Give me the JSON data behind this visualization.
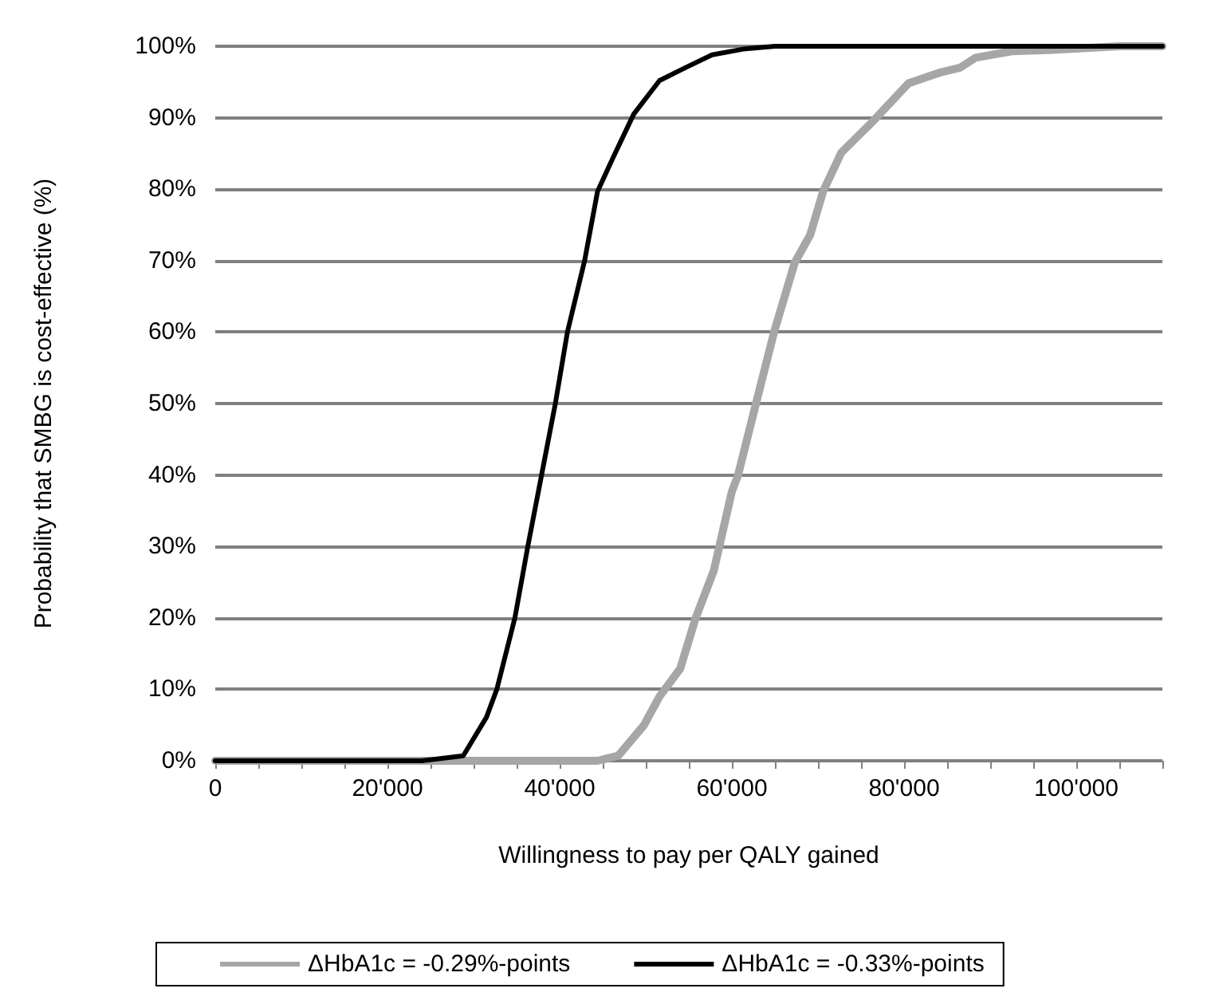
{
  "chart_data": {
    "type": "line",
    "xlabel": "Willingness to pay per QALY gained",
    "ylabel": "Probability that SMBG is cost-effective (%)",
    "xlim": [
      0,
      110000
    ],
    "ylim": [
      0,
      100
    ],
    "xticks": [
      0,
      {
        "value": 5000,
        "label": null
      },
      {
        "value": 10000,
        "label": null
      },
      {
        "value": 15000,
        "label": null
      },
      {
        "value": 20000,
        "label": "20'000"
      },
      {
        "value": 25000,
        "label": null
      },
      {
        "value": 30000,
        "label": null
      },
      {
        "value": 35000,
        "label": null
      },
      {
        "value": 40000,
        "label": "40'000"
      },
      {
        "value": 45000,
        "label": null
      },
      {
        "value": 50000,
        "label": null
      },
      {
        "value": 55000,
        "label": null
      },
      {
        "value": 60000,
        "label": "60'000"
      },
      {
        "value": 65000,
        "label": null
      },
      {
        "value": 70000,
        "label": null
      },
      {
        "value": 75000,
        "label": null
      },
      {
        "value": 80000,
        "label": "80'000"
      },
      {
        "value": 85000,
        "label": null
      },
      {
        "value": 90000,
        "label": null
      },
      {
        "value": 95000,
        "label": null
      },
      {
        "value": 100000,
        "label": "100'000"
      },
      {
        "value": 105000,
        "label": null
      },
      {
        "value": 110000,
        "label": null
      }
    ],
    "yticks": [
      {
        "value": 0,
        "label": "0%"
      },
      {
        "value": 10,
        "label": "10%"
      },
      {
        "value": 20,
        "label": "20%"
      },
      {
        "value": 30,
        "label": "30%"
      },
      {
        "value": 40,
        "label": "40%"
      },
      {
        "value": 50,
        "label": "50%"
      },
      {
        "value": 60,
        "label": "60%"
      },
      {
        "value": 70,
        "label": "70%"
      },
      {
        "value": 80,
        "label": "80%"
      },
      {
        "value": 90,
        "label": "90%"
      },
      {
        "value": 100,
        "label": "100%"
      }
    ],
    "grid": "y",
    "legend": "bottom",
    "marker": "none",
    "line_style": "solid",
    "series": [
      {
        "name": "ΔHbA1c = -0.29%-points",
        "color": "#a6a6a6",
        "x": [
          0,
          44400,
          46800,
          49800,
          51600,
          54000,
          55800,
          57900,
          60000,
          60700,
          62800,
          64900,
          67300,
          69100,
          70600,
          72700,
          76300,
          80500,
          84100,
          86500,
          88300,
          92500,
          97300,
          105000,
          110000
        ],
        "values": [
          0,
          0,
          0.7,
          5,
          9,
          12.9,
          20,
          26.6,
          37.7,
          39.9,
          50,
          60,
          69.7,
          73.6,
          79.7,
          85.1,
          89.4,
          94.8,
          96.3,
          97,
          98.4,
          99.3,
          99.5,
          100,
          100
        ]
      },
      {
        "name": "ΔHbA1c = -0.33%-points",
        "color": "#000000",
        "x": [
          0,
          24000,
          28800,
          31500,
          32700,
          34800,
          36300,
          37900,
          39500,
          40900,
          42900,
          44400,
          46200,
          48600,
          51600,
          54600,
          57700,
          61300,
          65000,
          110000
        ],
        "values": [
          0,
          0,
          0.7,
          6.1,
          10,
          20,
          30,
          40,
          50,
          60,
          70,
          79.7,
          84.4,
          90.5,
          95.2,
          97,
          98.8,
          99.6,
          100,
          100
        ]
      }
    ]
  }
}
